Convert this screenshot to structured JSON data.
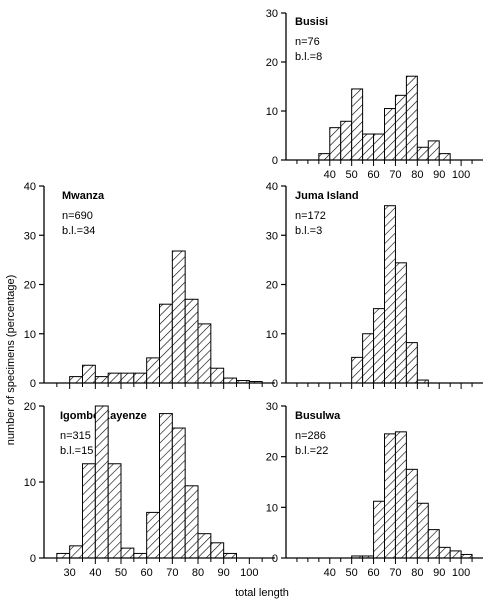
{
  "figure": {
    "ylabel": "number of specimens (percentage)",
    "xlabel": "total length"
  },
  "colors": {
    "ink": "#000000",
    "paper": "#ffffff"
  },
  "chart_data": [
    {
      "type": "bar",
      "title": "Busisi",
      "annotations": [
        "n=76",
        "b.l.=8"
      ],
      "xlim": [
        20,
        110
      ],
      "ylim": [
        0,
        30
      ],
      "yticks": [
        0,
        10,
        20,
        30
      ],
      "xticks": [
        40,
        50,
        60,
        70,
        80,
        90,
        100
      ],
      "show_xtick_labels": true,
      "bin_width": 5,
      "bins_start": [
        35,
        40,
        45,
        50,
        55,
        60,
        65,
        70,
        75,
        80,
        85,
        90,
        95
      ],
      "values": [
        1.3,
        6.6,
        7.9,
        14.5,
        5.3,
        5.3,
        10.5,
        13.2,
        17.1,
        2.6,
        3.9,
        1.3,
        0
      ]
    },
    {
      "type": "bar",
      "title": "Mwanza",
      "annotations": [
        "n=690",
        "b.l.=34"
      ],
      "xlim": [
        20,
        110
      ],
      "ylim": [
        0,
        40
      ],
      "yticks": [
        0,
        10,
        20,
        30,
        40
      ],
      "xticks": [
        30,
        40,
        50,
        60,
        70,
        80,
        90,
        100
      ],
      "show_xtick_labels": false,
      "bin_width": 5,
      "bins_start": [
        30,
        35,
        40,
        45,
        50,
        55,
        60,
        65,
        70,
        75,
        80,
        85,
        90,
        95,
        100
      ],
      "values": [
        1.3,
        3.6,
        1.3,
        2.0,
        2.0,
        2.0,
        5.1,
        16.0,
        26.8,
        17.0,
        12.0,
        3.0,
        1.0,
        0.5,
        0.3
      ]
    },
    {
      "type": "bar",
      "title": "Juma Island",
      "annotations": [
        "n=172",
        "b.l.=3"
      ],
      "xlim": [
        20,
        110
      ],
      "ylim": [
        0,
        40
      ],
      "yticks": [
        0,
        10,
        20,
        30,
        40
      ],
      "xticks": [
        40,
        50,
        60,
        70,
        80,
        90,
        100
      ],
      "show_xtick_labels": false,
      "bin_width": 5,
      "bins_start": [
        50,
        55,
        60,
        65,
        70,
        75,
        80
      ],
      "values": [
        5.2,
        10.0,
        15.1,
        36.0,
        24.4,
        8.2,
        0.6
      ]
    },
    {
      "type": "bar",
      "title": "Igombe/Kayenze",
      "annotations": [
        "n=315",
        "b.l.=15"
      ],
      "xlim": [
        20,
        110
      ],
      "ylim": [
        0,
        20
      ],
      "yticks": [
        0,
        10,
        20
      ],
      "xticks": [
        30,
        40,
        50,
        60,
        70,
        80,
        90,
        100
      ],
      "show_xtick_labels": true,
      "bin_width": 5,
      "bins_start": [
        25,
        30,
        35,
        40,
        45,
        50,
        55,
        60,
        65,
        70,
        75,
        80,
        85,
        90
      ],
      "values": [
        0.6,
        1.6,
        12.4,
        20.0,
        12.4,
        1.3,
        0.6,
        6.0,
        19.0,
        17.1,
        9.5,
        3.2,
        2.0,
        0.6
      ]
    },
    {
      "type": "bar",
      "title": "Busulwa",
      "annotations": [
        "n=286",
        "b.l.=22"
      ],
      "xlim": [
        20,
        110
      ],
      "ylim": [
        0,
        30
      ],
      "yticks": [
        0,
        10,
        20,
        30
      ],
      "xticks": [
        40,
        50,
        60,
        70,
        80,
        90,
        100
      ],
      "show_xtick_labels": true,
      "bin_width": 5,
      "bins_start": [
        50,
        55,
        60,
        65,
        70,
        75,
        80,
        85,
        90,
        95,
        100
      ],
      "values": [
        0.4,
        0.4,
        11.2,
        24.5,
        24.9,
        17.5,
        10.8,
        5.6,
        2.1,
        1.4,
        0.7
      ]
    }
  ]
}
